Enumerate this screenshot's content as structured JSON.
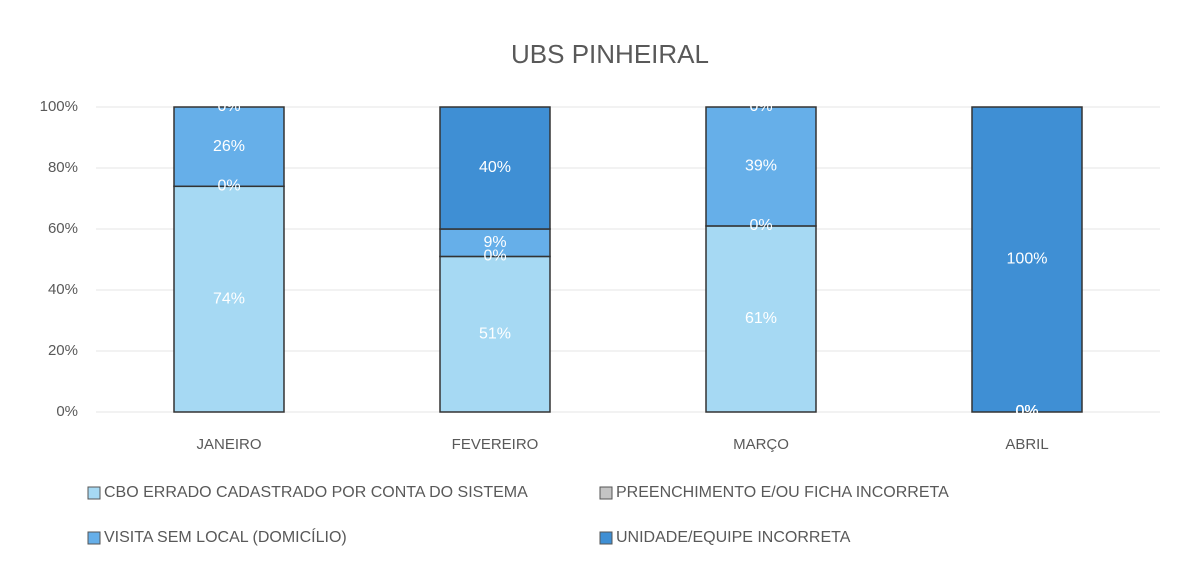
{
  "chart_data": {
    "type": "bar",
    "stacked": true,
    "title": "UBS PINHEIRAL",
    "categories": [
      "JANEIRO",
      "FEVEREIRO",
      "MARÇO",
      "ABRIL"
    ],
    "series": [
      {
        "name": "CBO ERRADO CADASTRADO POR CONTA DO SISTEMA",
        "color": "#a6d9f3",
        "values": [
          74,
          51,
          61,
          0
        ],
        "value_labels": [
          "74%",
          "51%",
          "61%",
          "0%"
        ]
      },
      {
        "name": "PREENCHIMENTO E/OU FICHA INCORRETA",
        "color": "#c4c4c4",
        "values": [
          0,
          0,
          0,
          0
        ],
        "value_labels": [
          "0%",
          "0%",
          "0%",
          "0%"
        ]
      },
      {
        "name": "VISITA SEM LOCAL (DOMICÍLIO)",
        "color": "#66afe9",
        "values": [
          26,
          9,
          39,
          0
        ],
        "value_labels": [
          "26%",
          "9%",
          "39%",
          "0%"
        ]
      },
      {
        "name": "UNIDADE/EQUIPE INCORRETA",
        "color": "#3f8fd4",
        "values": [
          0,
          40,
          0,
          100
        ],
        "value_labels": [
          "0%",
          "40%",
          "0%",
          "100%"
        ]
      }
    ],
    "ylim": [
      0,
      100
    ],
    "yticks": [
      {
        "value": 0,
        "label": "0%"
      },
      {
        "value": 20,
        "label": "20%"
      },
      {
        "value": 40,
        "label": "40%"
      },
      {
        "value": 60,
        "label": "60%"
      },
      {
        "value": 80,
        "label": "80%"
      },
      {
        "value": 100,
        "label": "100%"
      }
    ],
    "grid": true,
    "legend": "bottom"
  }
}
